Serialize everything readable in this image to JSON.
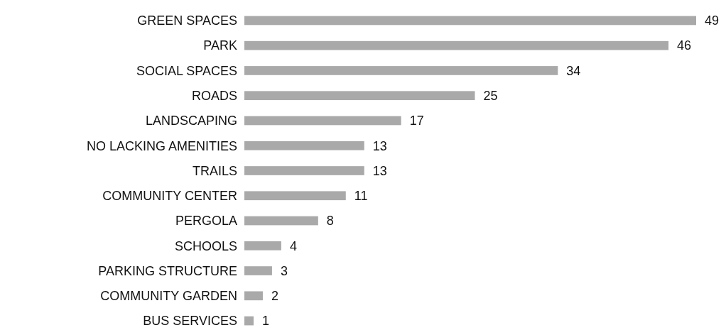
{
  "chart_data": {
    "type": "bar",
    "orientation": "horizontal",
    "categories": [
      "GREEN SPACES",
      "PARK",
      "SOCIAL SPACES",
      "ROADS",
      "LANDSCAPING",
      "NO LACKING AMENITIES",
      "TRAILS",
      "COMMUNITY CENTER",
      "PERGOLA",
      "SCHOOLS",
      "PARKING STRUCTURE",
      "COMMUNITY GARDEN",
      "BUS SERVICES"
    ],
    "values": [
      49,
      46,
      34,
      25,
      17,
      13,
      13,
      11,
      8,
      4,
      3,
      2,
      1
    ],
    "color": "#a9a9a9",
    "data_labels": true
  }
}
